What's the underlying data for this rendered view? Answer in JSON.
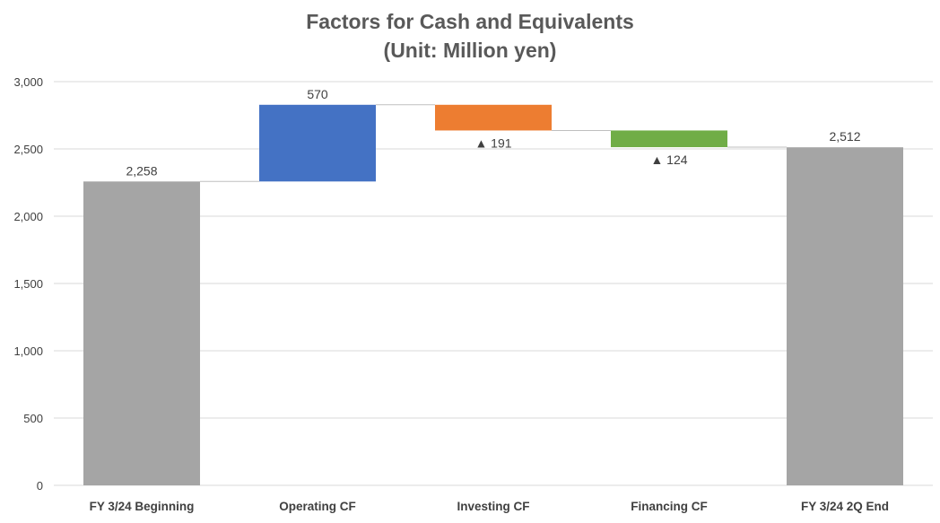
{
  "chart_data": {
    "type": "bar",
    "subtype": "waterfall",
    "title": "Factors for Cash and Equivalents",
    "subtitle": "(Unit: Million yen)",
    "categories": [
      "FY 3/24 Beginning",
      "Operating CF",
      "Investing CF",
      "Financing CF",
      "FY 3/24 2Q End"
    ],
    "values": [
      2258,
      570,
      -191,
      -124,
      2512
    ],
    "data_labels": [
      "2,258",
      "570",
      "▲ 191",
      "▲ 124",
      "2,512"
    ],
    "colors": [
      "#a5a5a5",
      "#4472c4",
      "#ed7d31",
      "#70ad47",
      "#a5a5a5"
    ],
    "ylim": [
      0,
      3000
    ],
    "yticks": [
      0,
      500,
      1000,
      1500,
      2000,
      2500,
      3000
    ],
    "ytick_labels": [
      "0",
      "500",
      "1,000",
      "1,500",
      "2,000",
      "2,500",
      "3,000"
    ],
    "grid": true,
    "legend": "none",
    "connector_lines": true
  }
}
